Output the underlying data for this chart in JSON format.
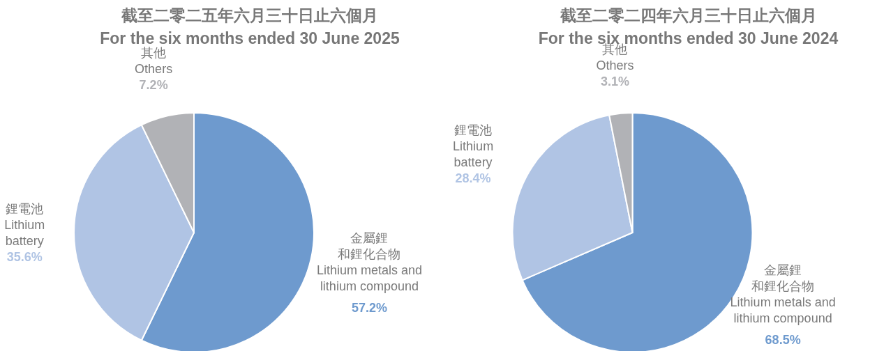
{
  "chart_data": [
    {
      "type": "pie",
      "title": "截至二零二五年六月三十日止六個月",
      "subtitle": "For the six months ended 30 June 2025",
      "categories": [
        "金屬鋰和鋰化合物\nLithium metals and\nlithium compound",
        "鋰電池\nLithium\nbattery",
        "其他\nOthers"
      ],
      "values": [
        57.2,
        35.6,
        7.2
      ],
      "value_labels": [
        "57.2%",
        "35.6%",
        "7.2%"
      ],
      "colors": [
        "#6e9ace",
        "#b0c4e4",
        "#b1b2b6"
      ]
    },
    {
      "type": "pie",
      "title": "截至二零二四年六月三十日止六個月",
      "subtitle": "For the six months ended 30 June 2024",
      "categories": [
        "金屬鋰和鋰化合物\nLithium metals and\nlithium compound",
        "鋰電池\nLithium\nbattery",
        "其他\nOthers"
      ],
      "values": [
        68.5,
        28.4,
        3.1
      ],
      "value_labels": [
        "68.5%",
        "28.4%",
        "3.1%"
      ],
      "colors": [
        "#6e9ace",
        "#b0c4e4",
        "#b1b2b6"
      ]
    }
  ]
}
